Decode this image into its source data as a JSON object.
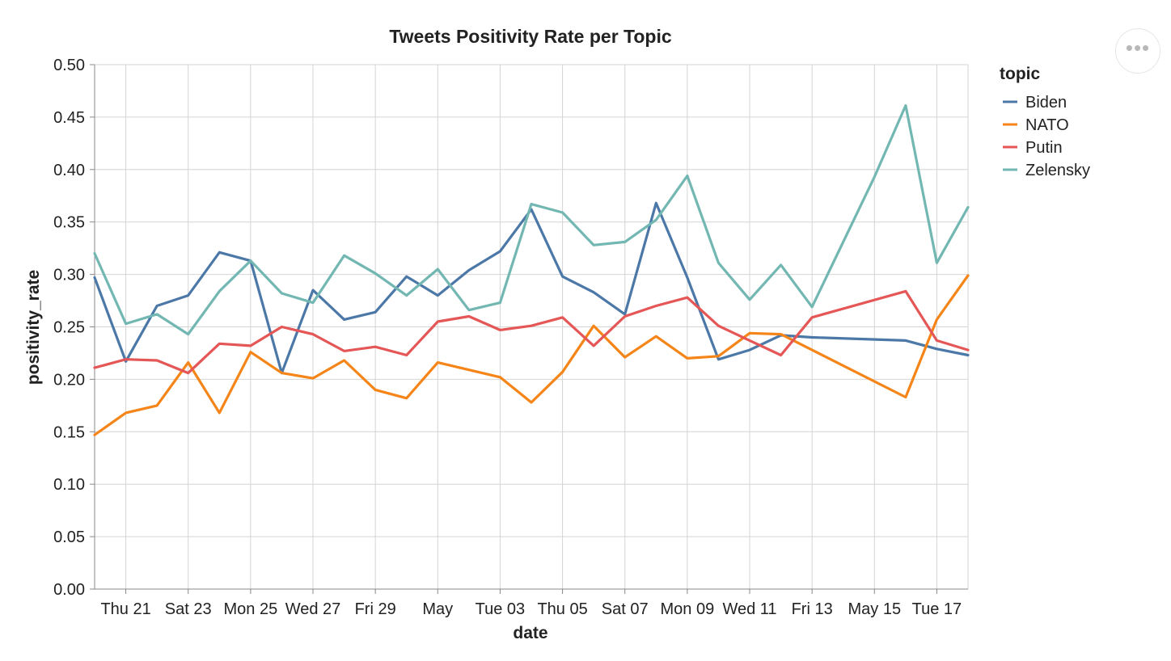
{
  "chart_data": {
    "type": "line",
    "title": "Tweets Positivity Rate per Topic",
    "xlabel": "date",
    "ylabel": "positivity_rate",
    "ylim": [
      0,
      0.5
    ],
    "yticks": [
      "0.00",
      "0.05",
      "0.10",
      "0.15",
      "0.20",
      "0.25",
      "0.30",
      "0.35",
      "0.40",
      "0.45",
      "0.50"
    ],
    "xlim": [
      "Apr 20",
      "May 18"
    ],
    "xticks": [
      {
        "date": "Apr 21",
        "label": "Thu 21"
      },
      {
        "date": "Apr 23",
        "label": "Sat 23"
      },
      {
        "date": "Apr 25",
        "label": "Mon 25"
      },
      {
        "date": "Apr 27",
        "label": "Wed 27"
      },
      {
        "date": "Apr 29",
        "label": "Fri 29"
      },
      {
        "date": "May 01",
        "label": "May"
      },
      {
        "date": "May 03",
        "label": "Tue 03"
      },
      {
        "date": "May 05",
        "label": "Thu 05"
      },
      {
        "date": "May 07",
        "label": "Sat 07"
      },
      {
        "date": "May 09",
        "label": "Mon 09"
      },
      {
        "date": "May 11",
        "label": "Wed 11"
      },
      {
        "date": "May 13",
        "label": "Fri 13"
      },
      {
        "date": "May 15",
        "label": "May 15"
      },
      {
        "date": "May 17",
        "label": "Tue 17"
      }
    ],
    "grid": true,
    "legend": {
      "title": "topic",
      "placement": "right"
    },
    "series": [
      {
        "name": "Biden",
        "color": "#4c78a8",
        "points": [
          [
            "Apr 20",
            0.297
          ],
          [
            "Apr 21",
            0.217
          ],
          [
            "Apr 22",
            0.27
          ],
          [
            "Apr 23",
            0.28
          ],
          [
            "Apr 24",
            0.321
          ],
          [
            "Apr 25",
            0.313
          ],
          [
            "Apr 26",
            0.206
          ],
          [
            "Apr 27",
            0.285
          ],
          [
            "Apr 28",
            0.257
          ],
          [
            "Apr 29",
            0.264
          ],
          [
            "Apr 30",
            0.298
          ],
          [
            "May 01",
            0.28
          ],
          [
            "May 02",
            0.304
          ],
          [
            "May 03",
            0.322
          ],
          [
            "May 04",
            0.362
          ],
          [
            "May 05",
            0.298
          ],
          [
            "May 06",
            0.283
          ],
          [
            "May 07",
            0.262
          ],
          [
            "May 08",
            0.368
          ],
          [
            "May 09",
            0.297
          ],
          [
            "May 10",
            0.219
          ],
          [
            "May 11",
            0.228
          ],
          [
            "May 12",
            0.242
          ],
          [
            "May 13",
            0.24
          ],
          [
            "May 16",
            0.237
          ],
          [
            "May 17",
            0.229
          ],
          [
            "May 18",
            0.223
          ]
        ]
      },
      {
        "name": "NATO",
        "color": "#f58518",
        "points": [
          [
            "Apr 20",
            0.147
          ],
          [
            "Apr 21",
            0.168
          ],
          [
            "Apr 22",
            0.175
          ],
          [
            "Apr 23",
            0.216
          ],
          [
            "Apr 24",
            0.168
          ],
          [
            "Apr 25",
            0.226
          ],
          [
            "Apr 26",
            0.206
          ],
          [
            "Apr 27",
            0.201
          ],
          [
            "Apr 28",
            0.218
          ],
          [
            "Apr 29",
            0.19
          ],
          [
            "Apr 30",
            0.182
          ],
          [
            "May 01",
            0.216
          ],
          [
            "May 03",
            0.202
          ],
          [
            "May 04",
            0.178
          ],
          [
            "May 05",
            0.207
          ],
          [
            "May 06",
            0.251
          ],
          [
            "May 07",
            0.221
          ],
          [
            "May 08",
            0.241
          ],
          [
            "May 09",
            0.22
          ],
          [
            "May 10",
            0.222
          ],
          [
            "May 11",
            0.244
          ],
          [
            "May 12",
            0.243
          ],
          [
            "May 16",
            0.183
          ],
          [
            "May 17",
            0.257
          ],
          [
            "May 18",
            0.299
          ]
        ]
      },
      {
        "name": "Putin",
        "color": "#e45756",
        "points": [
          [
            "Apr 20",
            0.211
          ],
          [
            "Apr 21",
            0.219
          ],
          [
            "Apr 22",
            0.218
          ],
          [
            "Apr 23",
            0.206
          ],
          [
            "Apr 24",
            0.234
          ],
          [
            "Apr 25",
            0.232
          ],
          [
            "Apr 26",
            0.25
          ],
          [
            "Apr 27",
            0.243
          ],
          [
            "Apr 28",
            0.227
          ],
          [
            "Apr 29",
            0.231
          ],
          [
            "Apr 30",
            0.223
          ],
          [
            "May 01",
            0.255
          ],
          [
            "May 02",
            0.26
          ],
          [
            "May 03",
            0.247
          ],
          [
            "May 04",
            0.251
          ],
          [
            "May 05",
            0.259
          ],
          [
            "May 06",
            0.232
          ],
          [
            "May 07",
            0.26
          ],
          [
            "May 08",
            0.27
          ],
          [
            "May 09",
            0.278
          ],
          [
            "May 10",
            0.251
          ],
          [
            "May 11",
            0.237
          ],
          [
            "May 12",
            0.223
          ],
          [
            "May 13",
            0.259
          ],
          [
            "May 16",
            0.284
          ],
          [
            "May 17",
            0.237
          ],
          [
            "May 18",
            0.228
          ]
        ]
      },
      {
        "name": "Zelensky",
        "color": "#72b7b2",
        "points": [
          [
            "Apr 20",
            0.32
          ],
          [
            "Apr 21",
            0.253
          ],
          [
            "Apr 22",
            0.262
          ],
          [
            "Apr 23",
            0.243
          ],
          [
            "Apr 24",
            0.284
          ],
          [
            "Apr 25",
            0.313
          ],
          [
            "Apr 26",
            0.282
          ],
          [
            "Apr 27",
            0.273
          ],
          [
            "Apr 28",
            0.318
          ],
          [
            "Apr 29",
            0.301
          ],
          [
            "Apr 30",
            0.28
          ],
          [
            "May 01",
            0.305
          ],
          [
            "May 02",
            0.266
          ],
          [
            "May 03",
            0.273
          ],
          [
            "May 04",
            0.367
          ],
          [
            "May 05",
            0.359
          ],
          [
            "May 06",
            0.328
          ],
          [
            "May 07",
            0.331
          ],
          [
            "May 08",
            0.352
          ],
          [
            "May 09",
            0.394
          ],
          [
            "May 10",
            0.311
          ],
          [
            "May 11",
            0.276
          ],
          [
            "May 12",
            0.309
          ],
          [
            "May 13",
            0.269
          ],
          [
            "May 15",
            0.393
          ],
          [
            "May 16",
            0.461
          ],
          [
            "May 17",
            0.311
          ],
          [
            "May 18",
            0.364
          ]
        ]
      }
    ]
  },
  "menu": {
    "icon": "ellipsis-icon",
    "label": "•••"
  }
}
